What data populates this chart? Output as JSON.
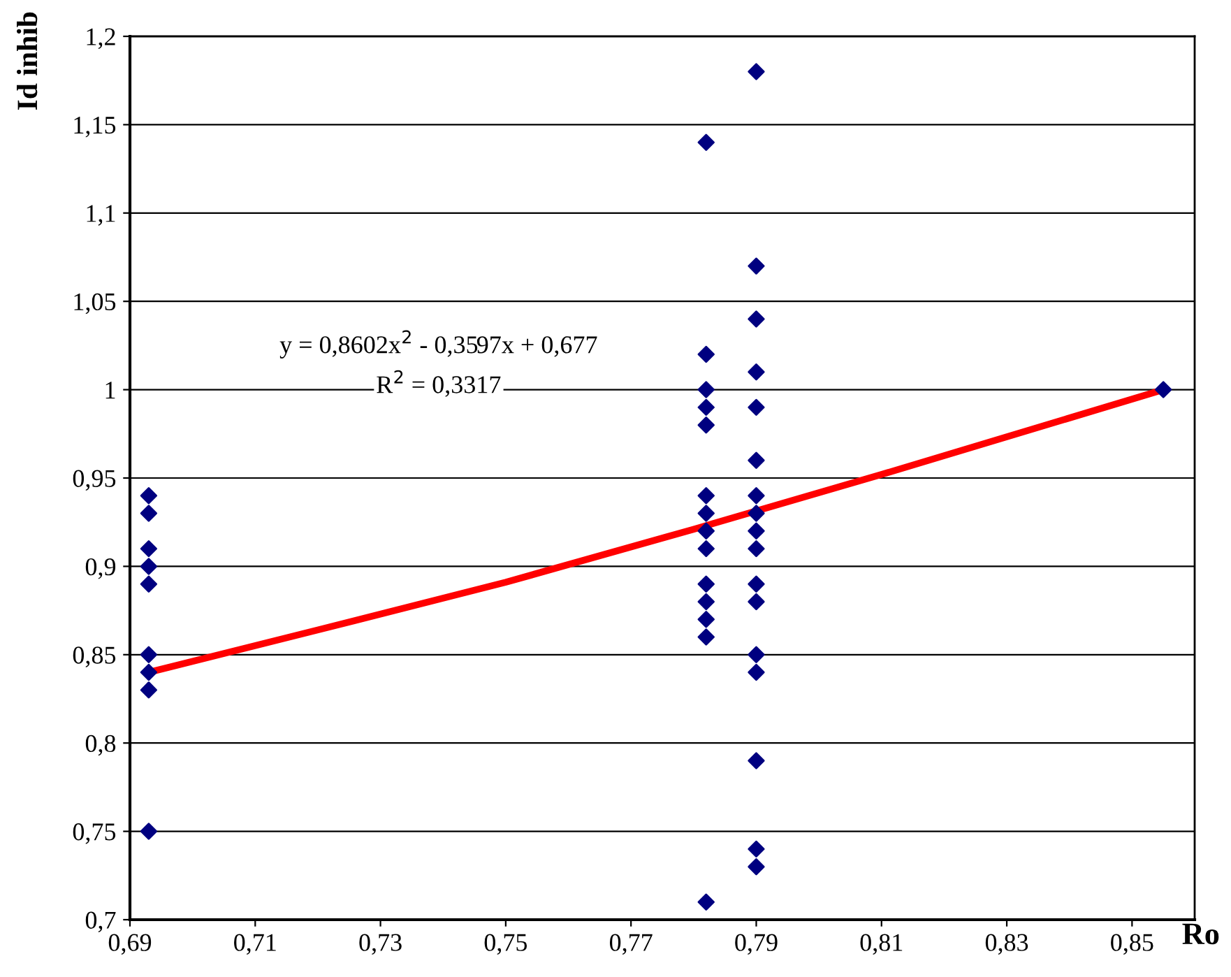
{
  "chart_data": {
    "type": "scatter",
    "xlabel": "Ro",
    "ylabel": "Id inhib",
    "series": [
      {
        "color": "#000080",
        "marker": "diamond",
        "x": [
          0.693,
          0.693,
          0.693,
          0.693,
          0.693,
          0.693,
          0.693,
          0.693,
          0.693,
          0.782,
          0.782,
          0.782,
          0.782,
          0.782,
          0.782,
          0.782,
          0.782,
          0.782,
          0.782,
          0.782,
          0.782,
          0.782,
          0.782,
          0.79,
          0.79,
          0.79,
          0.79,
          0.79,
          0.79,
          0.79,
          0.79,
          0.79,
          0.79,
          0.79,
          0.79,
          0.79,
          0.79,
          0.79,
          0.79,
          0.79,
          0.855
        ],
        "values": [
          0.94,
          0.93,
          0.91,
          0.9,
          0.89,
          0.85,
          0.84,
          0.83,
          0.75,
          1.14,
          1.02,
          1.0,
          0.99,
          0.98,
          0.94,
          0.93,
          0.92,
          0.91,
          0.89,
          0.88,
          0.87,
          0.86,
          0.71,
          1.18,
          1.07,
          1.04,
          1.01,
          0.99,
          0.96,
          0.94,
          0.93,
          0.92,
          0.91,
          0.89,
          0.88,
          0.85,
          0.84,
          0.79,
          0.74,
          0.73,
          1.0
        ]
      },
      {
        "type": "line",
        "color": "#ff0000",
        "marker": "none",
        "line_style": "solid",
        "x": [
          0.693,
          0.72,
          0.75,
          0.78,
          0.81,
          0.855
        ],
        "values": [
          0.84,
          0.864,
          0.891,
          0.921,
          0.952,
          1.0
        ]
      }
    ],
    "xlim": [
      0.69,
      0.86
    ],
    "xticks": [
      {
        "value": 0.69,
        "label": "0,69"
      },
      {
        "value": 0.71,
        "label": "0,71"
      },
      {
        "value": 0.73,
        "label": "0,73"
      },
      {
        "value": 0.75,
        "label": "0,75"
      },
      {
        "value": 0.77,
        "label": "0,77"
      },
      {
        "value": 0.79,
        "label": "0,79"
      },
      {
        "value": 0.81,
        "label": "0,81"
      },
      {
        "value": 0.83,
        "label": "0,83"
      },
      {
        "value": 0.85,
        "label": "0,85"
      }
    ],
    "ylim": [
      0.7,
      1.2
    ],
    "yticks": [
      {
        "value": 0.7,
        "label": "0,7"
      },
      {
        "value": 0.75,
        "label": "0,75"
      },
      {
        "value": 0.8,
        "label": "0,8"
      },
      {
        "value": 0.85,
        "label": "0,85"
      },
      {
        "value": 0.9,
        "label": "0,9"
      },
      {
        "value": 0.95,
        "label": "0,95"
      },
      {
        "value": 1.0,
        "label": "1"
      },
      {
        "value": 1.05,
        "label": "1,05"
      },
      {
        "value": 1.1,
        "label": "1,1"
      },
      {
        "value": 1.15,
        "label": "1,15"
      },
      {
        "value": 1.2,
        "label": "1,2"
      }
    ],
    "grid": "y",
    "legend": false,
    "annotations": [
      "y = 0,8602x$^{2}$ - 0,3597x + 0,677",
      "R$^{2}$ = 0,3317"
    ]
  }
}
